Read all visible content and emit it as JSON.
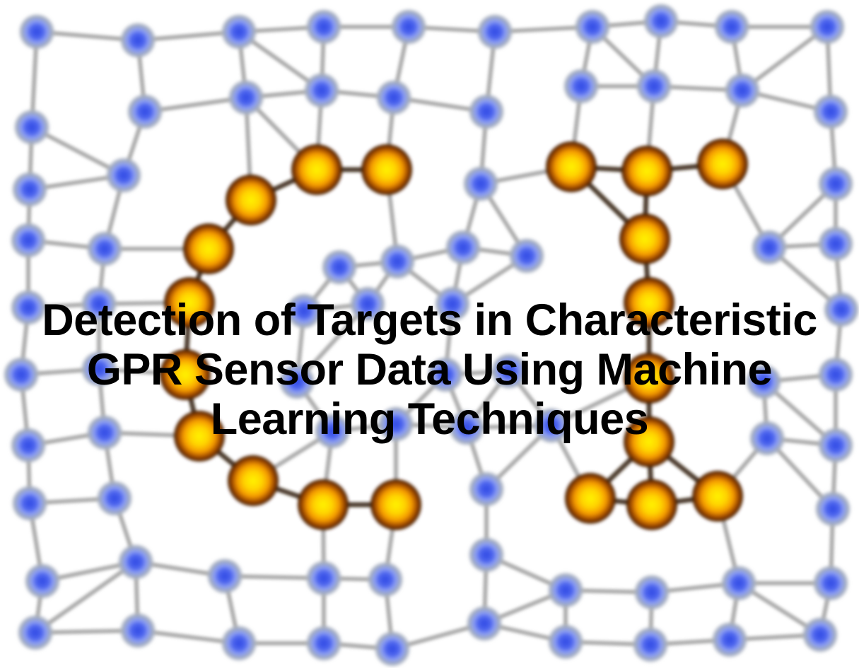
{
  "title": {
    "lines": [
      "Detection of Targets in Characteristic",
      "GPR Sensor Data Using Machine",
      "Learning Techniques"
    ]
  },
  "graphic": {
    "icon": "node-network-graphic",
    "node_color": "#6f86f0",
    "node_core_color": "#3a52e6",
    "target_node_color": "#ffd000",
    "target_node_rim_color": "#a04a00",
    "edge_color": "#8f8f8f"
  }
}
